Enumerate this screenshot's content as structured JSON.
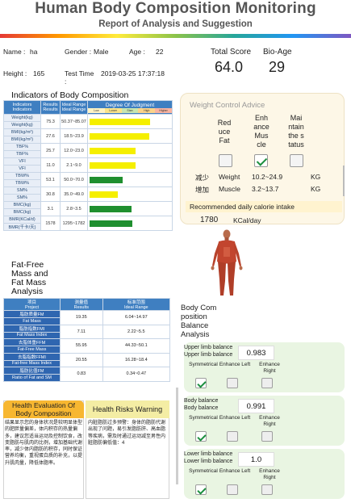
{
  "header": {
    "title": "Human Body Composition Monitoring",
    "subtitle": "Report of Analysis and Suggestion"
  },
  "person": {
    "name_label": "Name :",
    "name": "ha",
    "gender_label": "Gender :",
    "gender": "Male",
    "age_label": "Age :",
    "age": "22",
    "height_label": "Height :",
    "height": "165",
    "test_time_label": "Test Time :",
    "test_time": "2019-03-25 17:37:18"
  },
  "scores": {
    "total_label": "Total Score",
    "total": "64.0",
    "bioage_label": "Bio-Age",
    "bioage": "29"
  },
  "indicators": {
    "title": "Indicators of Body Composition",
    "headers": [
      "Indicators",
      "Results",
      "Ideal Range",
      "Degree Of Judgment"
    ],
    "header_subs": [
      "Indicators",
      "Results",
      "Ideal Range"
    ],
    "degree_scale": [
      "Low",
      "Lower",
      "Stan",
      "High",
      "Higher"
    ],
    "rows": [
      {
        "name": "Weight(kg)",
        "name2": "Weight(kg)",
        "value": "75.3",
        "range": "50.37~85.07",
        "level": 0.82,
        "color": "#f5ef00"
      },
      {
        "name": "BMI(kg/m²)",
        "name2": "BMI(kg/m²)",
        "value": "27.6",
        "range": "18.5~23.9",
        "level": 0.8,
        "color": "#f5ef00"
      },
      {
        "name": "TBF%",
        "name2": "TBF%",
        "value": "25.7",
        "range": "12.0~23.0",
        "level": 0.62,
        "color": "#f5ef00"
      },
      {
        "name": "VFI",
        "name2": "VFI",
        "value": "11.0",
        "range": "2.1~9.0",
        "level": 0.62,
        "color": "#f5ef00"
      },
      {
        "name": "TBW%",
        "name2": "TBW%",
        "value": "53.1",
        "range": "50.0~70.0",
        "level": 0.45,
        "color": "#1f8f2f"
      },
      {
        "name": "SM%",
        "name2": "SM%",
        "value": "30.8",
        "range": "35.0~49.0",
        "level": 0.38,
        "color": "#f5ef00"
      },
      {
        "name": "BMC(kg)",
        "name2": "BMC(kg)",
        "value": "3.1",
        "range": "2.8~3.5",
        "level": 0.57,
        "color": "#1f8f2f"
      },
      {
        "name": "BMR(KCal/d)",
        "name2": "BMR(千卡/天)",
        "value": "1578",
        "range": "1295~1782",
        "level": 0.58,
        "color": "#1f8f2f"
      }
    ]
  },
  "fat_free": {
    "title_lines": [
      "Fat-Free",
      "Mass and",
      "Fat Mass",
      "Analysis"
    ],
    "headers": [
      {
        "cn": "项目",
        "en": "Project"
      },
      {
        "cn": "测量值",
        "en": "Results"
      },
      {
        "cn": "标准范围",
        "en": "Ideal Range"
      }
    ],
    "rows": [
      {
        "cn": "脂肪质量FM",
        "en": "Fat Mass",
        "value": "19.35",
        "range": "6.04~14.97"
      },
      {
        "cn": "脂肪指数FMI",
        "en": "Fat Mass Index",
        "value": "7.11",
        "range": "2.22~5.5"
      },
      {
        "cn": "去脂体重FFM",
        "en": "Fat-Free Mass",
        "value": "55.95",
        "range": "44.33~50.1"
      },
      {
        "cn": "去脂指数FFMI",
        "en": "Fat-free Mass Index",
        "value": "20.55",
        "range": "16.28~18.4"
      },
      {
        "cn": "脂肪比值FM",
        "en": "Ratio of Fat and SM",
        "value": "0.83",
        "range": "0.34~0.47"
      }
    ]
  },
  "weight_control": {
    "title": "Weight Control Advice",
    "options": [
      {
        "lines": [
          "Red",
          "uce",
          "Fat"
        ],
        "checked": false
      },
      {
        "lines": [
          "Enh",
          "ance",
          "Mus",
          "cle"
        ],
        "checked": true
      },
      {
        "lines": [
          "Mai",
          "ntain",
          "the s",
          "tatus"
        ],
        "checked": false
      }
    ],
    "rows": [
      {
        "cn": "减少",
        "item": "Weight",
        "range": "10.2~24.9",
        "unit": "KG"
      },
      {
        "cn": "增加",
        "item": "Muscle",
        "range": "3.2~13.7",
        "unit": "KG"
      }
    ],
    "calorie_label": "Recommended daily calorie intake",
    "calorie_value": "1780",
    "calorie_unit": "KCal/day"
  },
  "body_balance": {
    "title_lines": [
      "Body Com",
      "position",
      "Balance",
      "Analysis"
    ],
    "options": [
      "Symmetrical",
      "Enhance Left",
      "Enhance Right"
    ],
    "sections": [
      {
        "label1": "Upper limb balance",
        "label2": "Upper limb balance",
        "value": "0.983",
        "checks": [
          true,
          false,
          false
        ]
      },
      {
        "label1": "Body balance",
        "label2": "Body balance",
        "value": "0.991",
        "checks": [
          true,
          false,
          false
        ]
      },
      {
        "label1": "Lower limb balance",
        "label2": "Lower limb balance",
        "value": "1.0",
        "checks": [
          true,
          false,
          false
        ]
      }
    ]
  },
  "health_eval": {
    "title_lines": [
      "Health Evaluation Of",
      "Body Composition"
    ],
    "text": "结果显示您的身体状况是较明显体型的肥胖量偏差，体内积存的热量偏多，建议您适当运动及控制饮食，改变脂肪与肌肉的比例，增加基础代谢率，减少体内脂肪的积存，同时保证营养均衡，重视蛋白质的补充，以提升肌肉量，降低体脂率。"
  },
  "health_risks": {
    "title": "Health Risks Warning",
    "text": "内脏脂肪过多预警：身体的脂肪代谢出现了问题，易引发脂肪肝、高血脂等疾病，需及时通过运动减至男性内脏脂肪偏低值：4"
  },
  "colors": {
    "accent_blue": "#3f7fc1",
    "yellow_bar": "#f5ef00",
    "green_bar": "#1f8f2f",
    "orange_head": "#f7b731"
  }
}
